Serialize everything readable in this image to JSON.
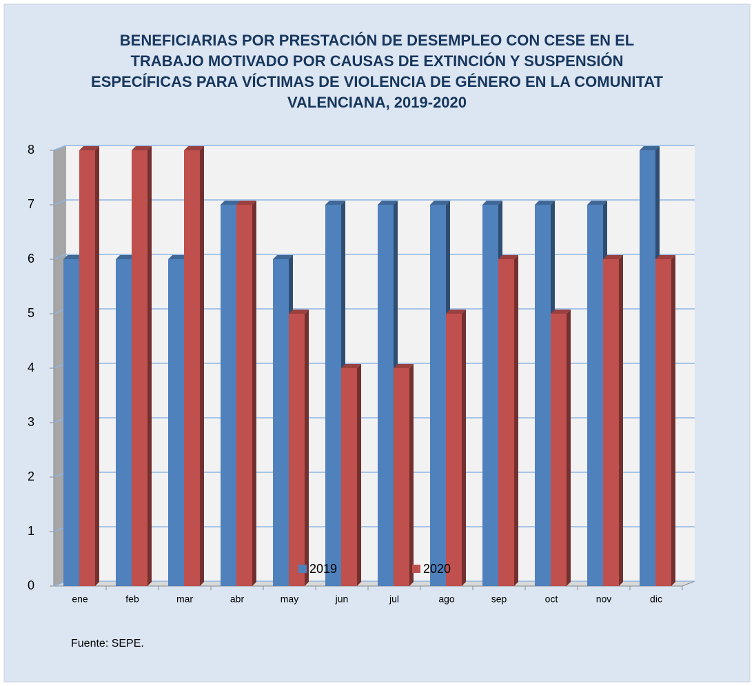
{
  "chart_data": {
    "type": "bar3d",
    "title": "BENEFICIARIAS POR PRESTACIÓN DE DESEMPLEO CON CESE EN EL TRABAJO MOTIVADO POR CAUSAS DE EXTINCIÓN Y SUSPENSIÓN ESPECÍFICAS PARA VÍCTIMAS DE VIOLENCIA DE GÉNERO EN LA COMUNITAT VALENCIANA, 2019-2020",
    "categories": [
      "ene",
      "feb",
      "mar",
      "abr",
      "may",
      "jun",
      "jul",
      "ago",
      "sep",
      "oct",
      "nov",
      "dic"
    ],
    "series": [
      {
        "name": "2019",
        "color": "#4f81bd",
        "values": [
          6,
          6,
          6,
          7,
          6,
          7,
          7,
          7,
          7,
          7,
          7,
          8
        ]
      },
      {
        "name": "2020",
        "color": "#c0504d",
        "values": [
          8,
          8,
          8,
          7,
          5,
          4,
          4,
          5,
          6,
          5,
          6,
          6
        ]
      }
    ],
    "ylim": [
      0,
      8
    ],
    "yticks": [
      0,
      1,
      2,
      3,
      4,
      5,
      6,
      7,
      8
    ],
    "grid": true,
    "legend": "bottom",
    "source": "Fuente: SEPE."
  }
}
